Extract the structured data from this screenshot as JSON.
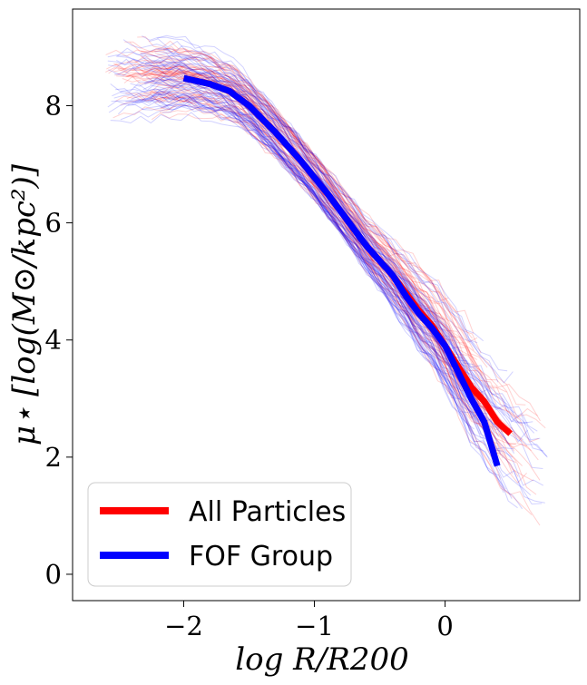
{
  "chart_data": {
    "type": "line",
    "xlabel": "log R/R200",
    "ylabel": "μ⋆ [log(M⊙/kpc²)]",
    "xlim": [
      -2.85,
      1.03
    ],
    "ylim": [
      -0.45,
      9.65
    ],
    "xticks": [
      -2,
      -1,
      0
    ],
    "xtick_labels": [
      "−2",
      "−1",
      "0"
    ],
    "yticks": [
      0,
      2,
      4,
      6,
      8
    ],
    "ytick_labels": [
      "0",
      "2",
      "4",
      "6",
      "8"
    ],
    "grid": false,
    "legend": {
      "placement": "bottom-left"
    },
    "series": [
      {
        "name": "All Particles",
        "color": "#ff0000",
        "x": [
          -2.0,
          -1.8,
          -1.65,
          -1.5,
          -1.3,
          -1.1,
          -0.9,
          -0.75,
          -0.6,
          -0.4,
          -0.3,
          -0.2,
          -0.1,
          0.0,
          0.1,
          0.2,
          0.3,
          0.4,
          0.5
        ],
        "values": [
          8.47,
          8.37,
          8.25,
          8.0,
          7.55,
          7.05,
          6.5,
          6.05,
          5.6,
          5.1,
          4.8,
          4.5,
          4.25,
          3.9,
          3.55,
          3.2,
          2.95,
          2.6,
          2.4
        ]
      },
      {
        "name": "FOF Group",
        "color": "#0000ff",
        "x": [
          -2.0,
          -1.8,
          -1.65,
          -1.5,
          -1.3,
          -1.1,
          -0.9,
          -0.75,
          -0.6,
          -0.4,
          -0.3,
          -0.2,
          -0.1,
          0.0,
          0.1,
          0.2,
          0.3,
          0.4
        ],
        "values": [
          8.47,
          8.37,
          8.25,
          8.0,
          7.55,
          7.05,
          6.5,
          6.05,
          5.6,
          5.1,
          4.75,
          4.45,
          4.2,
          3.9,
          3.45,
          3.0,
          2.6,
          1.85
        ]
      }
    ],
    "background_profiles": {
      "count_per_series": 60,
      "red_color": "#ff0000",
      "blue_color": "#0000ff",
      "opacity": 0.18
    }
  }
}
